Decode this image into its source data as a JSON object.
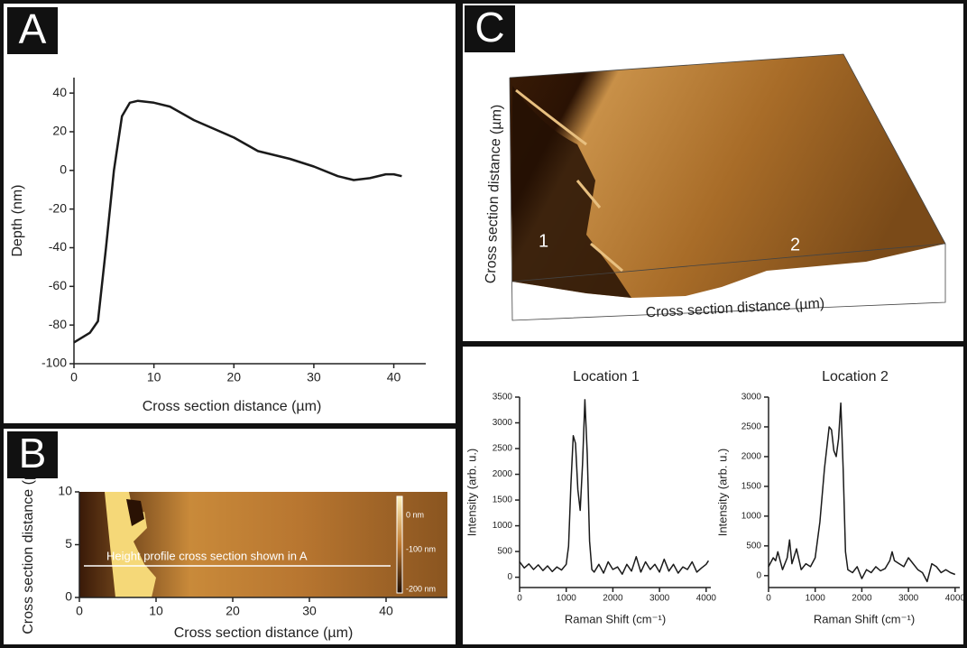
{
  "chart_data": [
    {
      "type": "line",
      "panel_label": "A",
      "xlabel": "Cross section distance (µm)",
      "ylabel": "Depth (nm)",
      "x": [
        0,
        2,
        3,
        4,
        5,
        6,
        7,
        8,
        10,
        12,
        15,
        20,
        23,
        27,
        30,
        33,
        35,
        37,
        39,
        40,
        41
      ],
      "series": [
        {
          "color": "#1a1a1a",
          "values": [
            -89,
            -84,
            -78,
            -40,
            0,
            28,
            35,
            36,
            35,
            33,
            26,
            17,
            10,
            6,
            2,
            -3,
            -5,
            -4,
            -2,
            -2,
            -3
          ]
        }
      ],
      "xlim": [
        0,
        44
      ],
      "ylim": [
        -100,
        48
      ],
      "xticks": [
        0,
        10,
        20,
        30,
        40
      ],
      "yticks": [
        -100,
        -80,
        -60,
        -40,
        -20,
        0,
        20,
        40
      ]
    },
    {
      "type": "image",
      "panel_label": "B",
      "xlabel": "Cross section distance (µm)",
      "ylabel": "Cross section distance (µm)",
      "annotation": "Height profile cross section shown in A",
      "colorbar_labels": [
        "0 nm",
        "-100 nm",
        "-200 nm"
      ],
      "xlim": [
        0,
        48
      ],
      "ylim": [
        0,
        10
      ],
      "xticks": [
        0,
        10,
        20,
        30,
        40
      ],
      "yticks": [
        0,
        5,
        10
      ]
    },
    {
      "type": "surface",
      "panel_label": "C",
      "xlabel": "Cross section distance (µm)",
      "ylabel": "Cross section distance (µm)",
      "annotations": [
        "1",
        "2"
      ]
    },
    {
      "type": "line",
      "title": "Location 1",
      "xlabel": "Raman Shift (cm⁻¹)",
      "ylabel": "Intensity (arb. u.)",
      "x": [
        0,
        100,
        200,
        300,
        400,
        500,
        600,
        700,
        800,
        900,
        1000,
        1050,
        1100,
        1150,
        1200,
        1250,
        1300,
        1350,
        1400,
        1450,
        1500,
        1550,
        1600,
        1700,
        1800,
        1900,
        2000,
        2100,
        2200,
        2300,
        2400,
        2500,
        2600,
        2700,
        2800,
        2900,
        3000,
        3100,
        3200,
        3300,
        3400,
        3500,
        3600,
        3700,
        3800,
        3900,
        4000,
        4050
      ],
      "series": [
        {
          "color": "#1a1a1a",
          "values": [
            300,
            180,
            260,
            150,
            240,
            130,
            220,
            110,
            200,
            140,
            250,
            600,
            1800,
            2750,
            2600,
            1700,
            1300,
            2200,
            3450,
            2400,
            700,
            150,
            100,
            250,
            80,
            300,
            150,
            200,
            60,
            250,
            120,
            400,
            100,
            300,
            150,
            250,
            100,
            350,
            120,
            250,
            80,
            200,
            150,
            300,
            100,
            180,
            250,
            320
          ]
        }
      ],
      "xlim": [
        0,
        4100
      ],
      "ylim": [
        -200,
        3500
      ],
      "xticks": [
        0,
        1000,
        2000,
        3000,
        4000
      ],
      "yticks": [
        0,
        500,
        1000,
        1500,
        2000,
        2500,
        3000,
        3500
      ]
    },
    {
      "type": "line",
      "title": "Location 2",
      "xlabel": "Raman Shift (cm⁻¹)",
      "ylabel": "Intensity (arb. u.)",
      "x": [
        0,
        100,
        150,
        200,
        300,
        400,
        450,
        500,
        600,
        700,
        800,
        900,
        1000,
        1100,
        1200,
        1300,
        1350,
        1400,
        1450,
        1500,
        1550,
        1600,
        1650,
        1700,
        1800,
        1900,
        2000,
        2100,
        2200,
        2300,
        2400,
        2500,
        2600,
        2650,
        2700,
        2800,
        2900,
        3000,
        3100,
        3200,
        3300,
        3400,
        3500,
        3600,
        3700,
        3800,
        3900,
        4000
      ],
      "series": [
        {
          "color": "#1a1a1a",
          "values": [
            150,
            300,
            250,
            400,
            100,
            300,
            600,
            200,
            450,
            100,
            200,
            150,
            300,
            900,
            1800,
            2500,
            2450,
            2100,
            2000,
            2300,
            2900,
            1800,
            400,
            100,
            50,
            150,
            -50,
            100,
            50,
            150,
            80,
            120,
            250,
            400,
            250,
            200,
            150,
            300,
            200,
            100,
            50,
            -100,
            200,
            150,
            50,
            100,
            50,
            20
          ]
        }
      ],
      "xlim": [
        0,
        4100
      ],
      "ylim": [
        -200,
        3000
      ],
      "xticks": [
        0,
        1000,
        2000,
        3000,
        4000
      ],
      "yticks": [
        0,
        500,
        1000,
        1500,
        2000,
        2500,
        3000
      ]
    }
  ]
}
